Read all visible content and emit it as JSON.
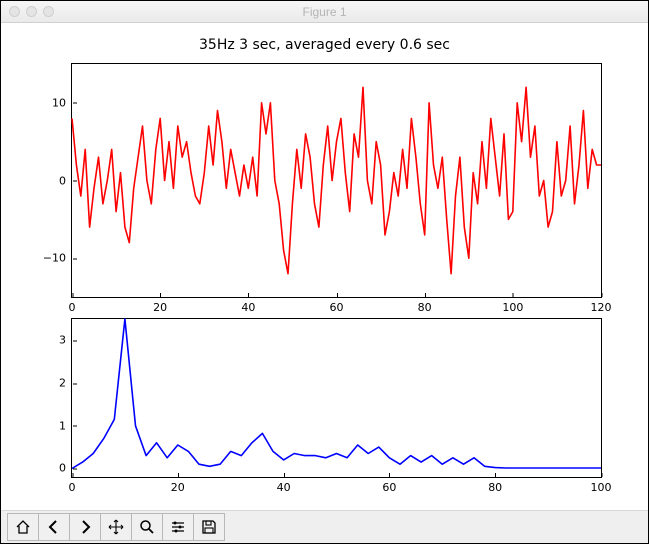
{
  "window": {
    "title": "Figure 1"
  },
  "chart_title": "35Hz 3 sec, averaged every 0.6 sec",
  "top_plot": {
    "type": "line",
    "color": "#ff0000",
    "line_width": 1.6,
    "xlim": [
      0,
      120
    ],
    "ylim": [
      -15,
      15
    ],
    "xticks": [
      0,
      20,
      40,
      60,
      80,
      100,
      120
    ],
    "yticks": [
      -10,
      0,
      10
    ],
    "x": [
      0,
      1,
      2,
      3,
      4,
      5,
      6,
      7,
      8,
      9,
      10,
      11,
      12,
      13,
      14,
      15,
      16,
      17,
      18,
      19,
      20,
      21,
      22,
      23,
      24,
      25,
      26,
      27,
      28,
      29,
      30,
      31,
      32,
      33,
      34,
      35,
      36,
      37,
      38,
      39,
      40,
      41,
      42,
      43,
      44,
      45,
      46,
      47,
      48,
      49,
      50,
      51,
      52,
      53,
      54,
      55,
      56,
      57,
      58,
      59,
      60,
      61,
      62,
      63,
      64,
      65,
      66,
      67,
      68,
      69,
      70,
      71,
      72,
      73,
      74,
      75,
      76,
      77,
      78,
      79,
      80,
      81,
      82,
      83,
      84,
      85,
      86,
      87,
      88,
      89,
      90,
      91,
      92,
      93,
      94,
      95,
      96,
      97,
      98,
      99,
      100,
      101,
      102,
      103,
      104,
      105,
      106,
      107,
      108,
      109,
      110,
      111,
      112,
      113,
      114,
      115,
      116,
      117,
      118,
      119,
      120
    ],
    "y": [
      8,
      2,
      -2,
      4,
      -6,
      -1,
      3,
      -3,
      0,
      4,
      -4,
      1,
      -6,
      -8,
      -1,
      3,
      7,
      0,
      -3,
      4,
      8,
      0,
      5,
      -1,
      7,
      3,
      5,
      1,
      -2,
      -3,
      1,
      7,
      2,
      9,
      5,
      -1,
      4,
      1,
      -2,
      2,
      -1,
      3,
      -2,
      10,
      6,
      10,
      0,
      -3,
      -9,
      -12,
      -3,
      4,
      -1,
      6,
      3,
      -3,
      -6,
      2,
      7,
      0,
      5,
      8,
      1,
      -4,
      6,
      3,
      12,
      0,
      -3,
      5,
      2,
      -7,
      -4,
      1,
      -2,
      4,
      -1,
      8,
      3,
      -3,
      -7,
      10,
      2,
      -1,
      3,
      -5,
      -12,
      -2,
      3,
      -6,
      -10,
      1,
      -3,
      5,
      -1,
      8,
      3,
      -2,
      6,
      -5,
      -4,
      10,
      5,
      12,
      3,
      7,
      -2,
      0,
      -6,
      -4,
      5,
      -2,
      0,
      7,
      -3,
      2,
      9,
      -1,
      4,
      2,
      2
    ]
  },
  "bottom_plot": {
    "type": "line",
    "color": "#0000ff",
    "line_width": 1.6,
    "xlim": [
      0,
      100
    ],
    "ylim": [
      -0.2,
      3.5
    ],
    "xticks": [
      0,
      20,
      40,
      60,
      80,
      100
    ],
    "yticks": [
      0,
      1,
      2,
      3
    ],
    "x": [
      0,
      2,
      4,
      6,
      8,
      10,
      12,
      14,
      16,
      18,
      20,
      22,
      24,
      26,
      28,
      30,
      32,
      34,
      36,
      38,
      40,
      42,
      44,
      46,
      48,
      50,
      52,
      54,
      56,
      58,
      60,
      62,
      64,
      66,
      68,
      70,
      72,
      74,
      76,
      78,
      80,
      82,
      84,
      86,
      88,
      90,
      92,
      94,
      96,
      98,
      100
    ],
    "y": [
      0,
      0.15,
      0.35,
      0.7,
      1.15,
      3.5,
      1.0,
      0.3,
      0.6,
      0.25,
      0.55,
      0.4,
      0.1,
      0.05,
      0.1,
      0.4,
      0.3,
      0.6,
      0.82,
      0.4,
      0.2,
      0.35,
      0.3,
      0.3,
      0.25,
      0.35,
      0.25,
      0.55,
      0.35,
      0.5,
      0.25,
      0.1,
      0.3,
      0.15,
      0.3,
      0.1,
      0.25,
      0.1,
      0.25,
      0.05,
      0.02,
      0.01,
      0.01,
      0.01,
      0.01,
      0.01,
      0.01,
      0.01,
      0.01,
      0.01,
      0.01
    ]
  },
  "toolbar": {
    "buttons": [
      "home",
      "back",
      "forward",
      "pan",
      "zoom",
      "configure",
      "save"
    ]
  }
}
